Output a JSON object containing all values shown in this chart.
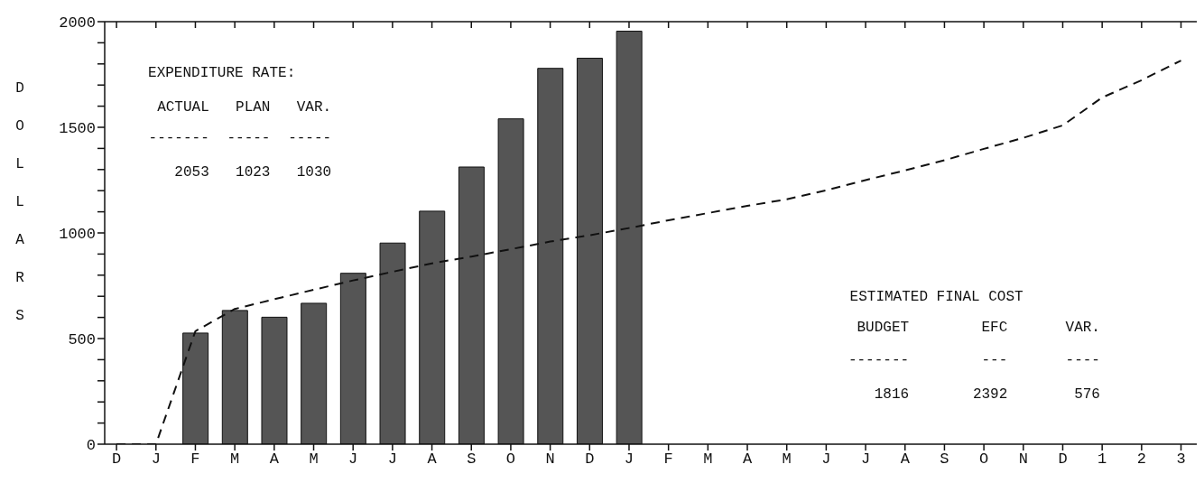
{
  "chart_data": {
    "type": "bar",
    "ylabel": "DOLLARS",
    "categories": [
      "D",
      "J",
      "F",
      "M",
      "A",
      "M",
      "J",
      "J",
      "A",
      "S",
      "O",
      "N",
      "D",
      "J",
      "F",
      "M",
      "A",
      "M",
      "J",
      "J",
      "A",
      "S",
      "O",
      "N",
      "D",
      "1",
      "2",
      "3"
    ],
    "series": [
      {
        "color": "#555555",
        "values": [
          null,
          null,
          526,
          633,
          601,
          667,
          809,
          952,
          1103,
          1312,
          1540,
          1779,
          1827,
          1955,
          null,
          null,
          null,
          null,
          null,
          null,
          null,
          null,
          null,
          null,
          null,
          null,
          null,
          null
        ]
      },
      {
        "type": "line",
        "color": "#111111",
        "line_style": "dashed",
        "values": [
          0,
          0,
          535,
          640,
          686,
          731,
          775,
          816,
          856,
          888,
          923,
          959,
          989,
          1023,
          1060,
          1094,
          1128,
          1159,
          1202,
          1250,
          1296,
          1344,
          1398,
          1450,
          1509,
          1641,
          1723,
          1816
        ]
      }
    ],
    "ylim": [
      0,
      2000
    ],
    "yticks": [
      0,
      {
        "value": 100,
        "label": null
      },
      {
        "value": 200,
        "label": null
      },
      {
        "value": 300,
        "label": null
      },
      {
        "value": 400,
        "label": null
      },
      {
        "value": 500,
        "label": "500"
      },
      {
        "value": 600,
        "label": null
      },
      {
        "value": 700,
        "label": null
      },
      {
        "value": 800,
        "label": null
      },
      {
        "value": 900,
        "label": null
      },
      1000,
      {
        "value": 1100,
        "label": null
      },
      {
        "value": 1200,
        "label": null
      },
      {
        "value": 1300,
        "label": null
      },
      {
        "value": 1400,
        "label": null
      },
      1500,
      {
        "value": 1600,
        "label": null
      },
      {
        "value": 1700,
        "label": null
      },
      {
        "value": 1800,
        "label": null
      },
      {
        "value": 1900,
        "label": null
      },
      2000
    ],
    "grid": false,
    "legend": false,
    "annotations": [
      "EXPENDITURE RATE:",
      "ACTUAL",
      "PLAN",
      "VAR.",
      "2053",
      "1023",
      "1030",
      "ESTIMATED FINAL COST",
      "BUDGET",
      "EFC",
      "VAR.",
      "1816",
      "2392",
      "576",
      "-------",
      "-----",
      "-----",
      "-------",
      "---",
      "----"
    ]
  }
}
